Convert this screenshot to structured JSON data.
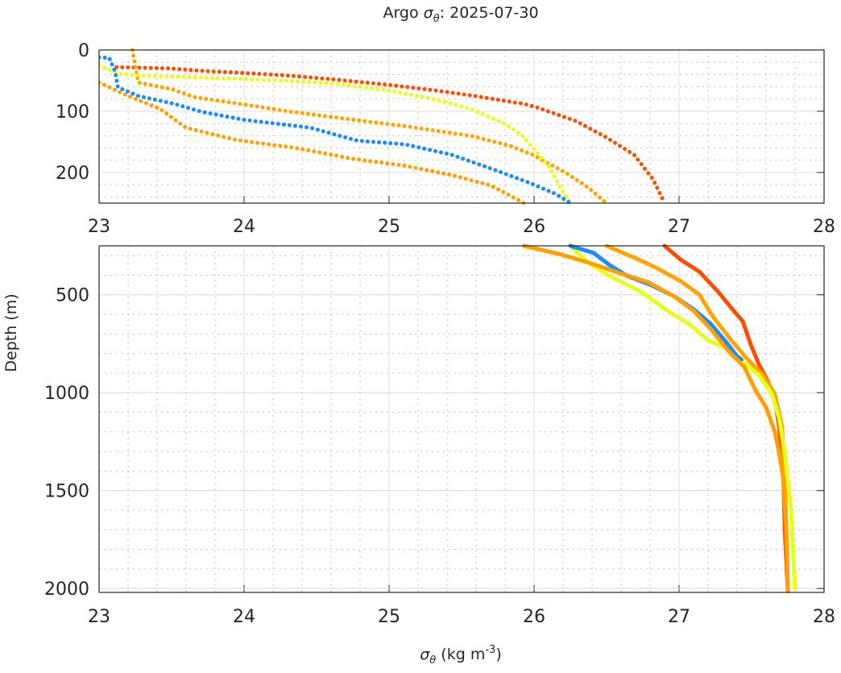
{
  "chart_data": {
    "type": "line",
    "title": {
      "prefix": "Argo ",
      "symbol": "σ",
      "subscript": "θ",
      "suffix": ": 2025-07-30"
    },
    "xlabel": {
      "symbol": "σ",
      "subscript": "θ",
      "unit": " (kg m",
      "exp": "-3",
      "close": ")"
    },
    "ylabel": "Depth (m)",
    "grid": true,
    "panels": [
      {
        "name": "upper",
        "xlim": [
          23,
          28
        ],
        "ylim": [
          0,
          250
        ],
        "yticks": [
          0,
          100,
          200
        ],
        "xticks": [
          23,
          24,
          25,
          26,
          27,
          28
        ],
        "style": "markers"
      },
      {
        "name": "lower",
        "xlim": [
          23,
          28
        ],
        "ylim": [
          250,
          2020
        ],
        "yticks": [
          500,
          1000,
          1500,
          2000
        ],
        "xticks": [
          23,
          24,
          25,
          26,
          27,
          28
        ],
        "style": "line"
      }
    ],
    "series": [
      {
        "name": "profile-red",
        "color": "#ff4d00",
        "sigma": [
          23.12,
          23.48,
          23.71,
          24.04,
          24.32,
          24.62,
          25.0,
          25.32,
          25.59,
          25.93,
          26.01,
          26.29,
          26.5,
          26.69,
          26.82,
          26.9,
          27.01,
          27.14,
          27.27,
          27.36,
          27.44,
          27.49,
          27.55,
          27.61,
          27.66,
          27.69,
          27.72,
          27.73,
          27.75
        ],
        "depth": [
          28,
          30,
          34,
          38,
          42,
          48,
          57,
          66,
          75,
          88,
          93,
          116,
          143,
          171,
          211,
          250,
          320,
          382,
          485,
          567,
          636,
          746,
          855,
          938,
          1034,
          1171,
          1445,
          1719,
          2014
        ]
      },
      {
        "name": "profile-orange-a",
        "color": "#ffa500",
        "sigma": [
          23.23,
          23.25,
          23.27,
          23.5,
          23.66,
          24.03,
          24.3,
          24.76,
          25.13,
          25.56,
          25.83,
          25.99,
          26.23,
          26.37,
          26.5,
          26.7,
          26.84,
          27.01,
          27.14,
          27.23,
          27.36,
          27.47,
          27.58,
          27.66,
          27.71,
          27.73,
          27.74,
          27.75
        ],
        "depth": [
          0,
          26,
          53,
          64,
          77,
          90,
          100,
          114,
          125,
          140,
          156,
          171,
          202,
          224,
          250,
          313,
          361,
          430,
          499,
          608,
          732,
          828,
          910,
          1006,
          1171,
          1445,
          1719,
          2007
        ]
      },
      {
        "name": "profile-yellow",
        "color": "#e6ff1a",
        "sigma": [
          23.0,
          23.15,
          23.31,
          23.82,
          24.3,
          24.64,
          25.0,
          25.29,
          25.56,
          25.78,
          25.91,
          26.02,
          26.11,
          26.18,
          26.25,
          26.37,
          26.52,
          26.74,
          26.92,
          27.07,
          27.2,
          27.33,
          27.44,
          27.55,
          27.64,
          27.69,
          27.73,
          27.77,
          27.8
        ],
        "depth": [
          26,
          39,
          42,
          46,
          50,
          55,
          66,
          79,
          96,
          118,
          138,
          167,
          193,
          224,
          250,
          334,
          403,
          485,
          581,
          650,
          732,
          773,
          842,
          910,
          1006,
          1130,
          1308,
          1582,
          2000
        ]
      },
      {
        "name": "profile-blue",
        "color": "#1a8cff",
        "sigma": [
          23.0,
          23.07,
          23.11,
          23.13,
          23.27,
          23.52,
          23.71,
          24.0,
          24.46,
          24.78,
          24.95,
          25.11,
          25.43,
          25.72,
          25.97,
          26.15,
          26.25,
          26.41,
          26.52,
          26.64,
          26.81,
          26.96,
          27.1,
          27.22,
          27.33,
          27.4,
          27.43
        ],
        "depth": [
          12,
          13,
          35,
          61,
          75,
          88,
          101,
          114,
          127,
          148,
          151,
          154,
          171,
          195,
          217,
          235,
          250,
          286,
          348,
          403,
          451,
          505,
          574,
          650,
          746,
          814,
          830
        ]
      },
      {
        "name": "profile-orange-b",
        "color": "#ff9f00",
        "sigma": [
          23.0,
          23.2,
          23.42,
          23.6,
          23.95,
          24.36,
          24.76,
          25.11,
          25.43,
          25.7,
          25.83,
          25.93,
          26.02,
          26.18,
          26.37,
          26.59,
          26.79,
          26.96,
          27.1,
          27.22,
          27.34,
          27.45,
          27.53,
          27.6,
          27.66,
          27.69,
          27.72,
          27.74,
          27.75
        ],
        "depth": [
          53,
          75,
          96,
          127,
          147,
          160,
          178,
          189,
          204,
          221,
          237,
          250,
          265,
          293,
          334,
          389,
          437,
          505,
          581,
          677,
          787,
          869,
          992,
          1075,
          1198,
          1308,
          1445,
          1719,
          2000
        ]
      }
    ]
  }
}
